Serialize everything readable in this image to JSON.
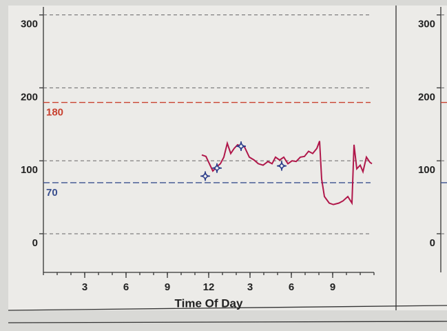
{
  "chart_data": [
    {
      "type": "line",
      "x_label": "Time Of Day",
      "xlim": [
        0,
        24
      ],
      "xticks": [
        3,
        6,
        9,
        12,
        {
          "value": 15,
          "label": "3"
        },
        {
          "value": 18,
          "label": "6"
        },
        {
          "value": 21,
          "label": "9"
        }
      ],
      "ylim": [
        -53,
        311
      ],
      "yticks": [
        0,
        100,
        200,
        300
      ],
      "grid": true,
      "reference_lines": [
        {
          "value": 180,
          "label": "180",
          "color": "#c8402e"
        },
        {
          "value": 70,
          "label": "70",
          "color": "#3a4f8e"
        }
      ],
      "series": [
        {
          "color": "#b0174a",
          "x": [
            11.5,
            11.8,
            12.05,
            12.3,
            12.6,
            12.85,
            13.1,
            13.35,
            13.6,
            13.85,
            14.1,
            14.35,
            14.6,
            14.95,
            15.3,
            15.6,
            15.95,
            16.3,
            16.6,
            16.85,
            17.15,
            17.45,
            17.75,
            18.05,
            18.35,
            18.65,
            18.95,
            19.25,
            19.55,
            19.85,
            20.05,
            20.2,
            20.4,
            20.75,
            21.05,
            21.45,
            21.75,
            22.1,
            22.4,
            22.55,
            22.75,
            23.0,
            23.2,
            23.45,
            23.7,
            23.85
          ],
          "values": [
            108,
            106,
            96,
            86,
            92,
            96,
            105,
            124,
            110,
            117,
            122,
            120,
            119,
            105,
            101,
            96,
            94,
            99,
            96,
            105,
            101,
            105,
            96,
            100,
            99,
            105,
            106,
            113,
            110,
            117,
            127,
            75,
            51,
            42,
            40,
            42,
            45,
            51,
            42,
            122,
            89,
            94,
            85,
            105,
            98,
            96
          ]
        },
        {
          "type": "scatter",
          "color": "#2b3d8a",
          "x": [
            11.75,
            12.6,
            14.35,
            17.3
          ],
          "values": [
            79,
            90,
            120,
            93
          ]
        }
      ]
    },
    {
      "type": "line",
      "ylim": [
        -53,
        311
      ],
      "yticks": [
        0,
        100,
        200,
        300
      ],
      "grid": true,
      "reference_lines": [
        {
          "value": 180,
          "color": "#c8402e"
        },
        {
          "value": 70,
          "color": "#3a4f8e"
        }
      ]
    }
  ]
}
